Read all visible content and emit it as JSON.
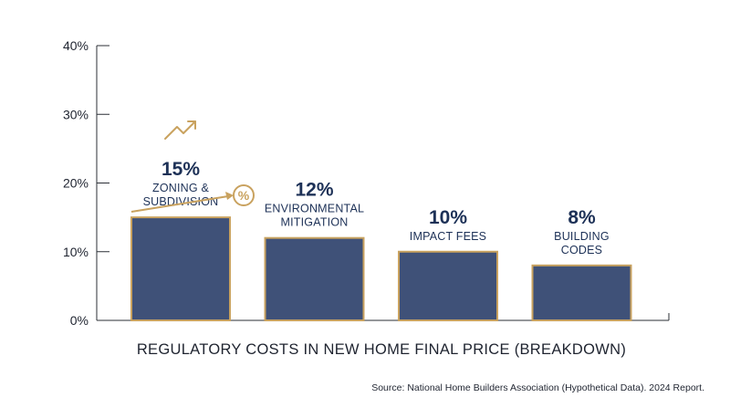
{
  "chart_data": {
    "type": "bar",
    "categories": [
      [
        "ZONING &",
        "SUBDIVISION"
      ],
      [
        "ENVIRONMENTAL",
        "MITIGATION"
      ],
      [
        "IMPACT FEES"
      ],
      [
        "BUILDING",
        "CODES"
      ]
    ],
    "values": [
      15,
      12,
      10,
      8
    ],
    "value_labels": [
      "15%",
      "12%",
      "10%",
      "8%"
    ],
    "y_ticks": [
      "0%",
      "10%",
      "20%",
      "30%",
      "40%"
    ],
    "ylim": [
      0,
      40
    ],
    "xlabel": "REGULATORY COSTS IN NEW HOME FINAL PRICE (BREAKDOWN)",
    "source": "Source: National Home Builders Association (Hypothetical Data). 2024 Report.",
    "grid": false,
    "legend": "none",
    "colors": {
      "bar_fill": "#3f5178",
      "bar_border": "#c9a25f",
      "text": "#1d3157",
      "accent": "#c9a25f"
    },
    "annotation_icons": [
      "trend-up-arrow-icon",
      "percent-circle-icon"
    ]
  }
}
